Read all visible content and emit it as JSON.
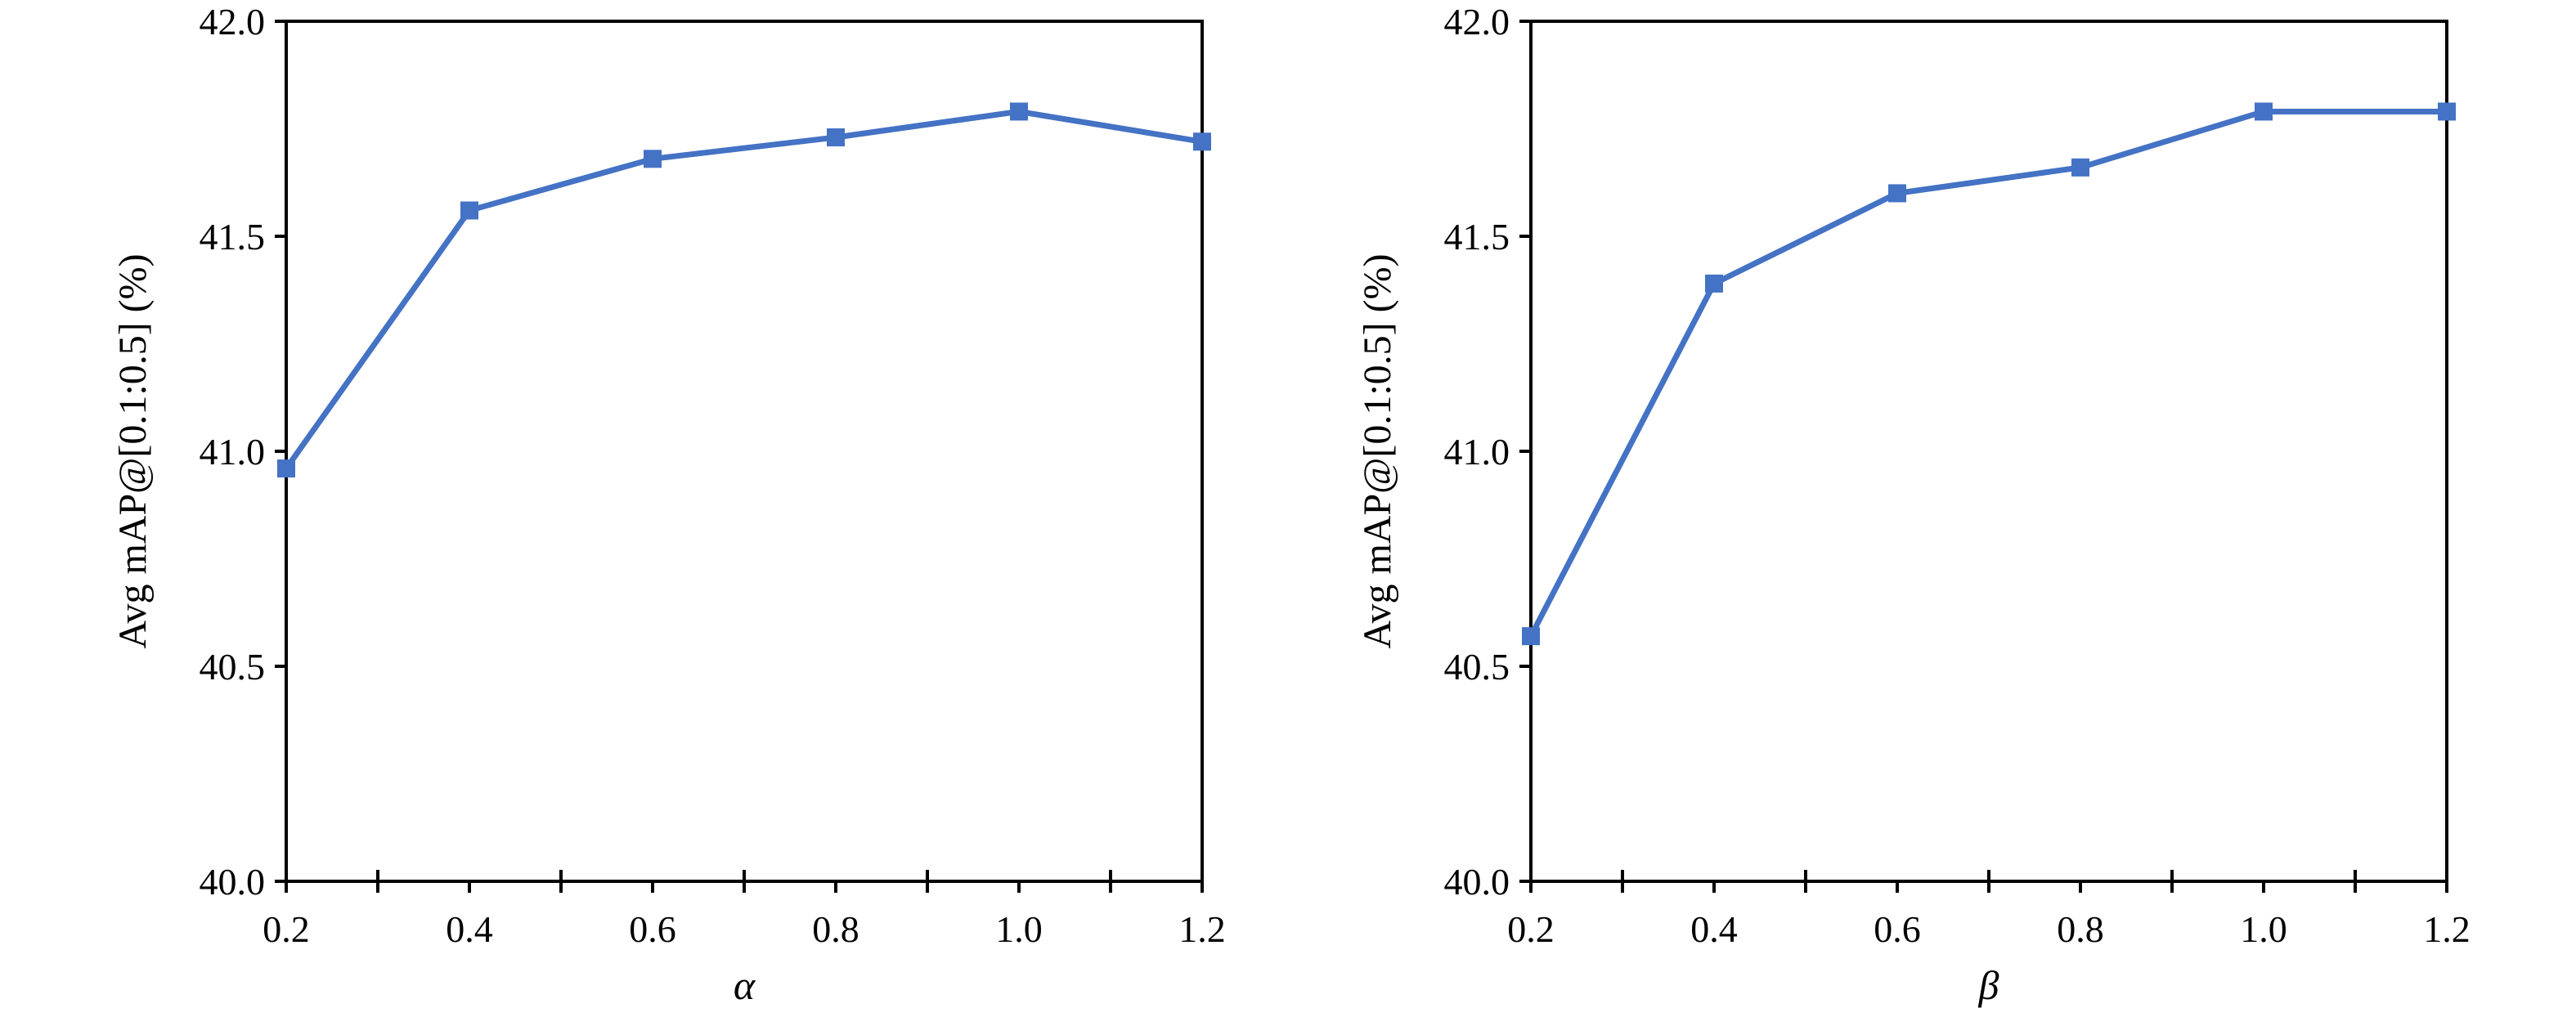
{
  "colors": {
    "series": "#4472C4",
    "axis": "#000000",
    "background": "#FFFFFF"
  },
  "chart_data": [
    {
      "type": "line",
      "title": "",
      "xlabel": "α",
      "ylabel": "Avg mAP@[0.1:0.5] (%)",
      "x": [
        0.2,
        0.4,
        0.6,
        0.8,
        1.0,
        1.2
      ],
      "xlim": [
        0.2,
        1.2
      ],
      "ylim": [
        40.0,
        42.0
      ],
      "x_ticks": [
        "0.2",
        "0.4",
        "0.6",
        "0.8",
        "1.0",
        "1.2"
      ],
      "y_ticks": [
        "40.0",
        "40.5",
        "41.0",
        "41.5",
        "42.0"
      ],
      "grid": false,
      "legend": "none",
      "marker": "square",
      "series": [
        {
          "values": [
            40.96,
            41.56,
            41.68,
            41.73,
            41.79,
            41.72
          ]
        }
      ]
    },
    {
      "type": "line",
      "title": "",
      "xlabel": "β",
      "ylabel": "Avg mAP@[0.1:0.5] (%)",
      "x": [
        0.2,
        0.4,
        0.6,
        0.8,
        1.0,
        1.2
      ],
      "xlim": [
        0.2,
        1.2
      ],
      "ylim": [
        40.0,
        42.0
      ],
      "x_ticks": [
        "0.2",
        "0.4",
        "0.6",
        "0.8",
        "1.0",
        "1.2"
      ],
      "y_ticks": [
        "40.0",
        "40.5",
        "41.0",
        "41.5",
        "42.0"
      ],
      "grid": false,
      "legend": "none",
      "marker": "square",
      "series": [
        {
          "values": [
            40.57,
            41.39,
            41.6,
            41.66,
            41.79,
            41.79
          ]
        }
      ]
    }
  ]
}
